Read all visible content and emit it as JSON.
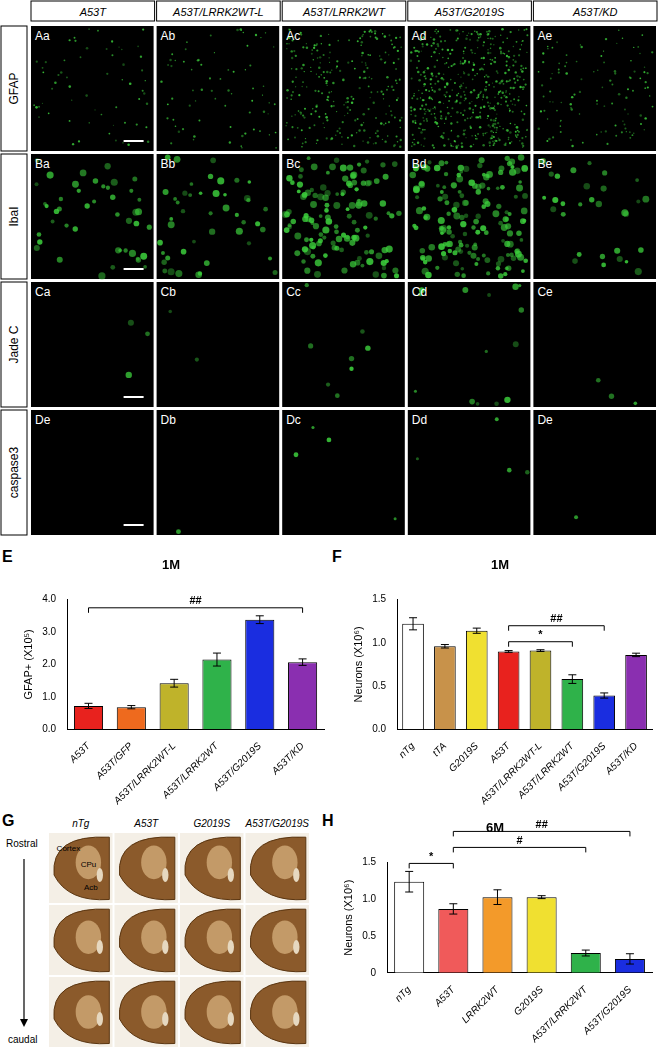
{
  "image_grid": {
    "columns": [
      "A53T",
      "A53T/LRRK2WT-L",
      "A53T/LRRK2WT",
      "A53T/G2019S",
      "A53T/KD"
    ],
    "rows": [
      {
        "label": "GFAP",
        "panels": [
          "Aa",
          "Ab",
          "Ac",
          "Ad",
          "Ae"
        ]
      },
      {
        "label": "IbaI",
        "panels": [
          "Ba",
          "Bb",
          "Bc",
          "Bd",
          "Be"
        ]
      },
      {
        "label": "Jade C",
        "panels": [
          "Ca",
          "Cb",
          "Cc",
          "Cd",
          "Ce"
        ]
      },
      {
        "label": "caspase3",
        "panels": [
          "De",
          "Db",
          "Dc",
          "Dd",
          "De"
        ]
      }
    ]
  },
  "sections": {
    "panel": "G",
    "columns": [
      "nTg",
      "A53T",
      "G2019S",
      "A53T/G2019S"
    ],
    "rostral_label": "Rostral",
    "caudal_label": "caudal",
    "regions": [
      "Cortex",
      "CPu",
      "Acb"
    ]
  },
  "chart_data": [
    {
      "panel": "E",
      "type": "bar",
      "title": "1M",
      "y_label": "GFAP+ (X10⁵)",
      "categories": [
        "A53T",
        "A53T/GFP",
        "A53T/LRRK2WT-L",
        "A53T/LRRK2WT",
        "A53T/G2019S",
        "A53T/KD"
      ],
      "values": [
        0.72,
        0.68,
        1.42,
        2.15,
        3.38,
        2.07
      ],
      "errors": [
        0.08,
        0.05,
        0.12,
        0.2,
        0.12,
        0.1
      ],
      "colors": [
        "#e8221e",
        "#ee6a1e",
        "#bfb32a",
        "#2fb24a",
        "#1a2de0",
        "#8a2fb0"
      ],
      "ylim": [
        0,
        4
      ],
      "yticks": [
        {
          "value": 0,
          "label": "0.0"
        },
        {
          "value": 1,
          "label": "1.0"
        },
        {
          "value": 2,
          "label": "2.0"
        },
        {
          "value": 3,
          "label": "3.0"
        },
        {
          "value": 4,
          "label": "4.0"
        }
      ],
      "grid": false,
      "annotations": [
        {
          "text": "##",
          "from": "A53T",
          "to": "A53T/KD"
        }
      ]
    },
    {
      "panel": "F",
      "type": "bar",
      "title": "1M",
      "y_label": "Neurons (X10⁶)",
      "categories": [
        "nTg",
        "tTA",
        "G2019S",
        "A53T",
        "A53T/LRRK2WT-L",
        "A53T/LRRK2WT",
        "A53T/G2019S",
        "A53T/KD"
      ],
      "values": [
        1.22,
        0.96,
        1.14,
        0.9,
        0.91,
        0.58,
        0.39,
        0.86
      ],
      "errors": [
        0.07,
        0.02,
        0.03,
        0.01,
        0.01,
        0.05,
        0.03,
        0.02
      ],
      "colors": [
        "#ffffff",
        "#c8924a",
        "#f0e030",
        "#e8221e",
        "#bfb32a",
        "#2fb24a",
        "#1a2de0",
        "#8a2fb0"
      ],
      "ylim": [
        0,
        1.5
      ],
      "yticks": [
        {
          "value": 0,
          "label": "0.0"
        },
        0.5,
        {
          "value": 1,
          "label": "1.0"
        },
        1.5
      ],
      "grid": false,
      "annotations": [
        {
          "text": "*",
          "from": "A53T",
          "to": "A53T/LRRK2WT"
        },
        {
          "text": "##",
          "from": "A53T",
          "to": "A53T/G2019S"
        }
      ]
    },
    {
      "panel": "H",
      "type": "bar",
      "title": "6M",
      "y_label": "Neurons (X10⁶)",
      "categories": [
        "nTg",
        "A53T",
        "LRRK2WT",
        "G2019S",
        "A53T/LRRK2WT",
        "A53T/G2019S"
      ],
      "values": [
        1.24,
        0.87,
        1.03,
        1.03,
        0.27,
        0.19
      ],
      "errors": [
        0.14,
        0.07,
        0.1,
        0.02,
        0.04,
        0.07
      ],
      "colors": [
        "#ffffff",
        "#f05a5a",
        "#f39a2a",
        "#f0e030",
        "#2fb24a",
        "#1a2de0"
      ],
      "ylim": [
        0,
        1.5
      ],
      "yticks": [
        0,
        0.5,
        {
          "value": 1,
          "label": "1.0"
        },
        1.5
      ],
      "grid": false,
      "annotations": [
        {
          "text": "*",
          "from": "nTg",
          "to": "A53T"
        },
        {
          "text": "#",
          "from": "A53T",
          "to": "A53T/LRRK2WT"
        },
        {
          "text": "##",
          "from": "A53T",
          "to": "A53T/G2019S"
        }
      ]
    }
  ]
}
